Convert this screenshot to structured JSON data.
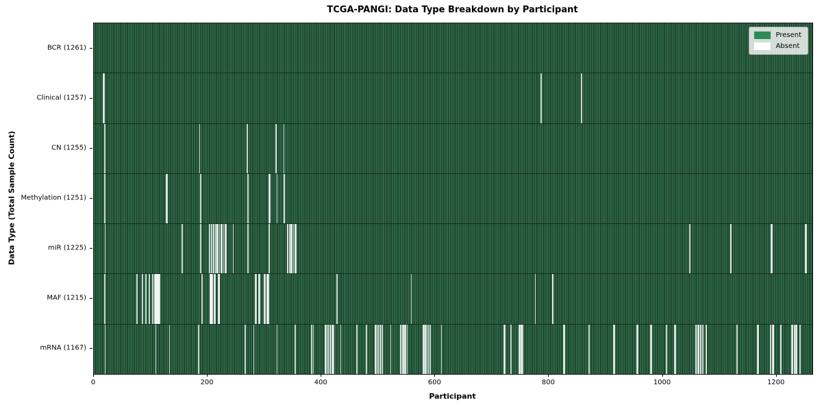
{
  "chart_data": {
    "type": "heatmap",
    "title": "TCGA-PANGI: Data Type Breakdown by Participant",
    "xlabel": "Participant",
    "ylabel": "Data Type (Total Sample Count)",
    "x_ticks": [
      0,
      200,
      400,
      600,
      800,
      1000,
      1200
    ],
    "participants_total": 1261,
    "grid": false,
    "legend_position": "upper-right",
    "colors": {
      "present": "#2e8b57",
      "absent": "#ffffff"
    },
    "legend": [
      {
        "label": "Present",
        "color": "#2e8b57"
      },
      {
        "label": "Absent",
        "color": "#ffffff"
      }
    ],
    "rows": [
      {
        "data_type": "BCR",
        "label": "BCR (1261)",
        "present_count": 1261,
        "absent_participants": []
      },
      {
        "data_type": "Clinical",
        "label": "Clinical (1257)",
        "present_count": 1257,
        "absent_participants": [
          16,
          17,
          785,
          856
        ]
      },
      {
        "data_type": "CN",
        "label": "CN (1255)",
        "present_count": 1255,
        "absent_participants": [
          18,
          185,
          269,
          319,
          320,
          333
        ]
      },
      {
        "data_type": "Methylation",
        "label": "Methylation (1251)",
        "present_count": 1251,
        "absent_participants": [
          18,
          127,
          128,
          187,
          270,
          307,
          308,
          321,
          333,
          334
        ]
      },
      {
        "data_type": "miR",
        "label": "miR (1225)",
        "present_count": 1225,
        "absent_participants": [
          19,
          154,
          187,
          202,
          203,
          206,
          209,
          210,
          213,
          216,
          217,
          220,
          223,
          224,
          227,
          230,
          231,
          244,
          270,
          307,
          339,
          340,
          343,
          346,
          347,
          350,
          353,
          354,
          1046,
          1047,
          1118,
          1119,
          1190,
          1191,
          1250,
          1251
        ]
      },
      {
        "data_type": "MAF",
        "label": "MAF (1215)",
        "present_count": 1215,
        "absent_participants": [
          18,
          75,
          84,
          85,
          90,
          91,
          96,
          97,
          102,
          103,
          106,
          107,
          108,
          109,
          110,
          111,
          112,
          113,
          114,
          115,
          189,
          203,
          204,
          205,
          206,
          207,
          211,
          212,
          218,
          219,
          220,
          283,
          284,
          289,
          290,
          299,
          300,
          303,
          304,
          305,
          306,
          426,
          557,
          775,
          805,
          806
        ]
      },
      {
        "data_type": "mRNA",
        "label": "mRNA (1167)",
        "present_count": 1167,
        "absent_participants": [
          19,
          108,
          132,
          183,
          265,
          280,
          321,
          353,
          382,
          385,
          406,
          407,
          410,
          411,
          414,
          415,
          418,
          419,
          421,
          433,
          461,
          478,
          494,
          495,
          498,
          499,
          502,
          503,
          506,
          521,
          538,
          539,
          542,
          543,
          546,
          547,
          550,
          578,
          579,
          582,
          583,
          586,
          587,
          590,
          610,
          720,
          721,
          732,
          747,
          748,
          750,
          751,
          753,
          825,
          826,
          869,
          870,
          913,
          914,
          954,
          955,
          978,
          979,
          1005,
          1006,
          1020,
          1021,
          1057,
          1058,
          1061,
          1062,
          1065,
          1066,
          1069,
          1075,
          1076,
          1129,
          1130,
          1166,
          1167,
          1188,
          1189,
          1192,
          1193,
          1194,
          1206,
          1207,
          1226,
          1227,
          1230,
          1231,
          1233,
          1234,
          1240
        ]
      }
    ]
  }
}
